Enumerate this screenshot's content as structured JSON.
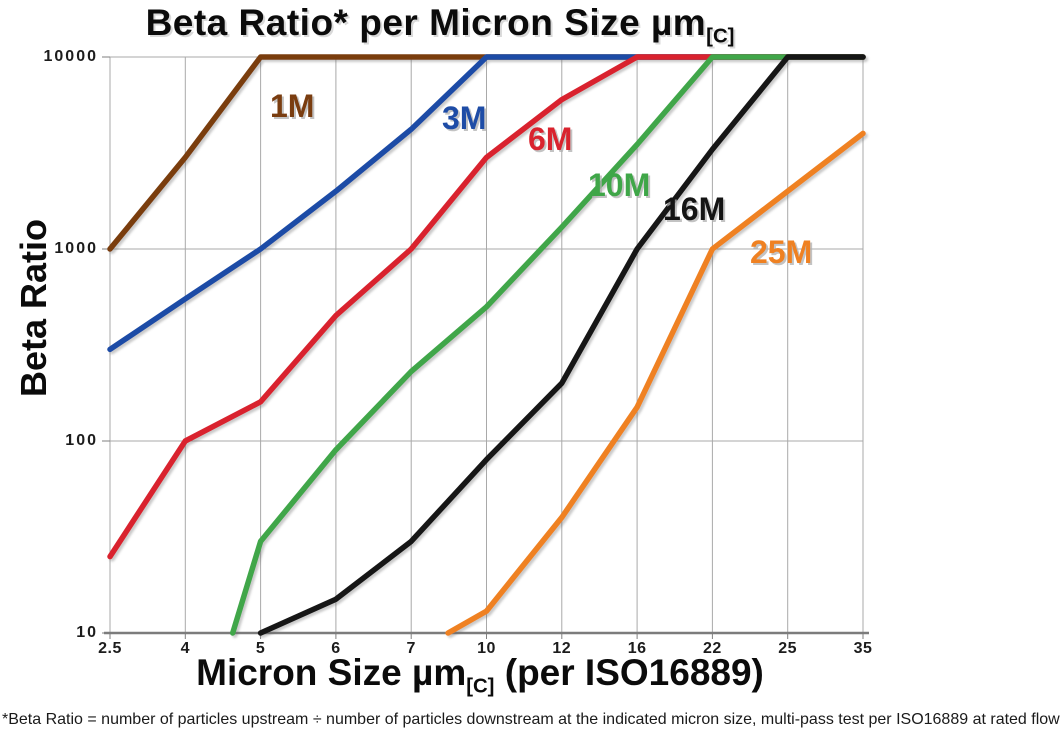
{
  "title": {
    "text": "Beta Ratio* per Micron Size µm",
    "subscript": "[C]"
  },
  "y_axis": {
    "label": "Beta Ratio",
    "ticks": [
      10000,
      1000,
      100,
      10
    ]
  },
  "x_axis": {
    "prefix": "Micron Size µm",
    "subscript": "[C]",
    "suffix": " (per ISO16889)"
  },
  "footnote": {
    "text": "*Beta Ratio = number of particles upstream ÷ number of particles downstream at the indicated micron size, multi-pass test per ISO16889 at rated flow"
  },
  "chart_data": {
    "type": "line",
    "x_scale": "categorical",
    "y_scale": "log",
    "ylim": [
      10,
      10000
    ],
    "grid": true,
    "legend_position": "inline-labels",
    "title": "Beta Ratio* per Micron Size µm[C]",
    "xlabel": "Micron Size µm[C] (per ISO16889)",
    "ylabel": "Beta Ratio",
    "categories": [
      2.5,
      4,
      5,
      6,
      7,
      10,
      12,
      16,
      22,
      25,
      35
    ],
    "series": [
      {
        "name": "1M",
        "color": "#7a3d10",
        "values": [
          1000,
          3000,
          10000,
          10000,
          10000,
          10000,
          10000,
          10000,
          10000,
          10000,
          10000
        ],
        "label_pos": [
          270,
          88
        ]
      },
      {
        "name": "3M",
        "color": "#1e4ca6",
        "values": [
          300,
          550,
          1000,
          2000,
          4200,
          10000,
          10000,
          10000,
          10000,
          10000,
          10000
        ],
        "label_pos": [
          442,
          100
        ]
      },
      {
        "name": "6M",
        "color": "#d9232e",
        "values": [
          25,
          100,
          160,
          450,
          1000,
          3000,
          6000,
          10000,
          10000,
          10000,
          10000
        ],
        "label_pos": [
          528,
          121
        ]
      },
      {
        "name": "10M",
        "color": "#3fa648",
        "values": [
          null,
          null,
          30,
          90,
          230,
          500,
          1300,
          3500,
          10000,
          10000,
          10000
        ],
        "entry": [
          1.63,
          10
        ],
        "label_pos": [
          588,
          167
        ]
      },
      {
        "name": "16M",
        "color": "#141414",
        "values": [
          null,
          null,
          10,
          15,
          30,
          80,
          200,
          1000,
          3300,
          10000,
          10000
        ],
        "label_pos": [
          663,
          191
        ]
      },
      {
        "name": "25M",
        "color": "#ef8122",
        "values": [
          null,
          null,
          null,
          null,
          null,
          13,
          40,
          150,
          1000,
          2000,
          4000
        ],
        "entry": [
          4.49,
          10
        ],
        "label_pos": [
          750,
          234
        ]
      }
    ]
  }
}
